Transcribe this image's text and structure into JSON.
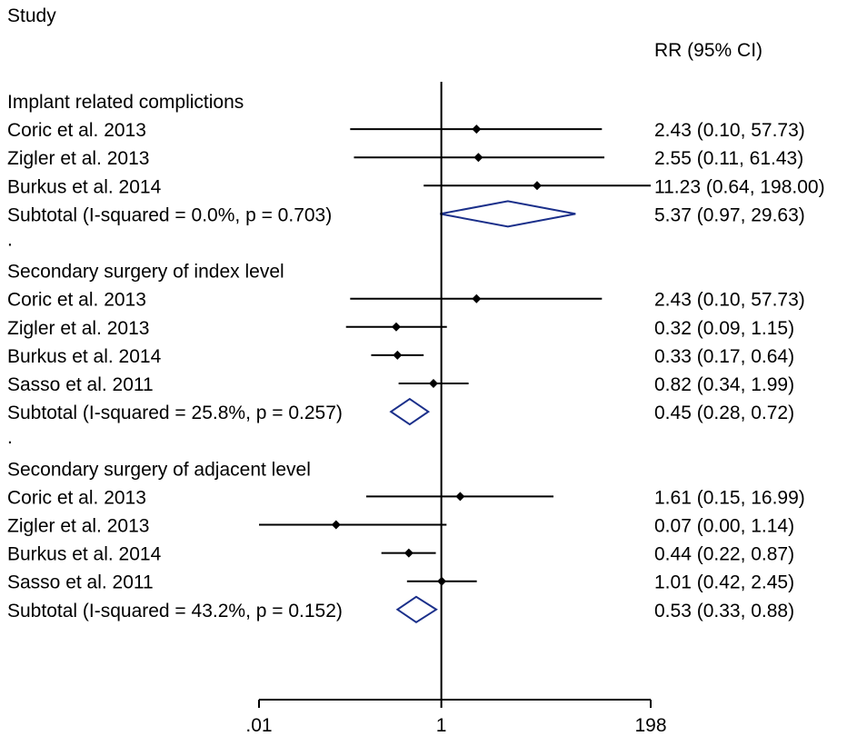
{
  "chart_data": {
    "type": "forest",
    "study_header": "Study",
    "effect_header": "RR (95% CI)",
    "x_scale": "log",
    "null_value": 1,
    "xlim": [
      0.01,
      198
    ],
    "x_ticks": [
      {
        "value": 0.01,
        "label": ".01"
      },
      {
        "value": 1,
        "label": "1"
      },
      {
        "value": 198,
        "label": "198"
      }
    ],
    "groups": [
      {
        "name": "Implant related complictions",
        "studies": [
          {
            "label": "Coric et al. 2013",
            "rr": 2.43,
            "lower": 0.1,
            "upper": 57.73,
            "ci_text": "2.43 (0.10, 57.73)"
          },
          {
            "label": "Zigler et al. 2013",
            "rr": 2.55,
            "lower": 0.11,
            "upper": 61.43,
            "ci_text": "2.55 (0.11, 61.43)"
          },
          {
            "label": "Burkus et al. 2014",
            "rr": 11.23,
            "lower": 0.64,
            "upper": 198.0,
            "ci_text": "11.23 (0.64, 198.00)"
          }
        ],
        "subtotal": {
          "label": "Subtotal  (I-squared = 0.0%, p = 0.703)",
          "rr": 5.37,
          "lower": 0.97,
          "upper": 29.63,
          "ci_text": "5.37 (0.97, 29.63)"
        }
      },
      {
        "name": "Secondary surgery of index level",
        "studies": [
          {
            "label": "Coric et al. 2013",
            "rr": 2.43,
            "lower": 0.1,
            "upper": 57.73,
            "ci_text": "2.43 (0.10, 57.73)"
          },
          {
            "label": "Zigler et al. 2013",
            "rr": 0.32,
            "lower": 0.09,
            "upper": 1.15,
            "ci_text": "0.32 (0.09, 1.15)"
          },
          {
            "label": "Burkus et al. 2014",
            "rr": 0.33,
            "lower": 0.17,
            "upper": 0.64,
            "ci_text": "0.33 (0.17, 0.64)"
          },
          {
            "label": "Sasso et al. 2011",
            "rr": 0.82,
            "lower": 0.34,
            "upper": 1.99,
            "ci_text": "0.82 (0.34, 1.99)"
          }
        ],
        "subtotal": {
          "label": "Subtotal  (I-squared = 25.8%, p = 0.257)",
          "rr": 0.45,
          "lower": 0.28,
          "upper": 0.72,
          "ci_text": "0.45 (0.28, 0.72)"
        }
      },
      {
        "name": "Secondary surgery of adjacent level",
        "studies": [
          {
            "label": "Coric et al. 2013",
            "rr": 1.61,
            "lower": 0.15,
            "upper": 16.99,
            "ci_text": "1.61 (0.15, 16.99)"
          },
          {
            "label": "Zigler et al. 2013",
            "rr": 0.07,
            "lower": 0.0,
            "upper": 1.14,
            "ci_text": "0.07 (0.00, 1.14)"
          },
          {
            "label": "Burkus et al. 2014",
            "rr": 0.44,
            "lower": 0.22,
            "upper": 0.87,
            "ci_text": "0.44 (0.22, 0.87)"
          },
          {
            "label": "Sasso et al. 2011",
            "rr": 1.01,
            "lower": 0.42,
            "upper": 2.45,
            "ci_text": "1.01 (0.42, 2.45)"
          }
        ],
        "subtotal": {
          "label": "Subtotal  (I-squared = 43.2%, p = 0.152)",
          "rr": 0.53,
          "lower": 0.33,
          "upper": 0.88,
          "ci_text": "0.53 (0.33, 0.88)"
        }
      }
    ],
    "group_separator": ".",
    "colors": {
      "line": "#000000",
      "diamond": "#1a2f8a"
    }
  }
}
